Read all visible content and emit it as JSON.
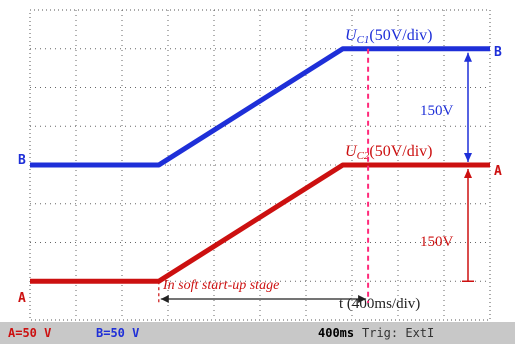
{
  "chart_data": {
    "type": "line",
    "x_unit": "400ms/div",
    "y_unit": "50V/div",
    "x_divisions": 10,
    "y_divisions": 8,
    "grid": true,
    "series": [
      {
        "name": "U_C1(50V/div)",
        "name_main": "U",
        "name_sub": "C1",
        "name_rest": "(50V/div)",
        "channel": "B",
        "color": "#1e2fd8",
        "points": [
          [
            0.0,
            4.0
          ],
          [
            2.8,
            4.0
          ],
          [
            6.8,
            7.0
          ],
          [
            10.0,
            7.0
          ]
        ]
      },
      {
        "name": "U_C2(50V/div)",
        "name_main": "U",
        "name_sub": "C2",
        "name_rest": "(50V/div)",
        "channel": "A",
        "color": "#cc1010",
        "points": [
          [
            0.0,
            1.0
          ],
          [
            2.8,
            1.0
          ],
          [
            6.8,
            4.0
          ],
          [
            10.0,
            4.0
          ]
        ]
      }
    ],
    "annotations": {
      "dashed_line_x": 7.35,
      "dashed_line_color": "#ff2a7a",
      "upper_span_label": "150V",
      "lower_span_label": "150V",
      "soft_start_label": "In soft start-up stage",
      "time_axis_label": "t (400ms/div)"
    }
  },
  "statusbar": {
    "channel_a": "A=50 V",
    "channel_b": "B=50 V",
    "timebase": "400ms",
    "trigger": "Trig: ExtI",
    "channel_a_color": "#cc1010",
    "channel_b_color": "#1e2fd8"
  }
}
